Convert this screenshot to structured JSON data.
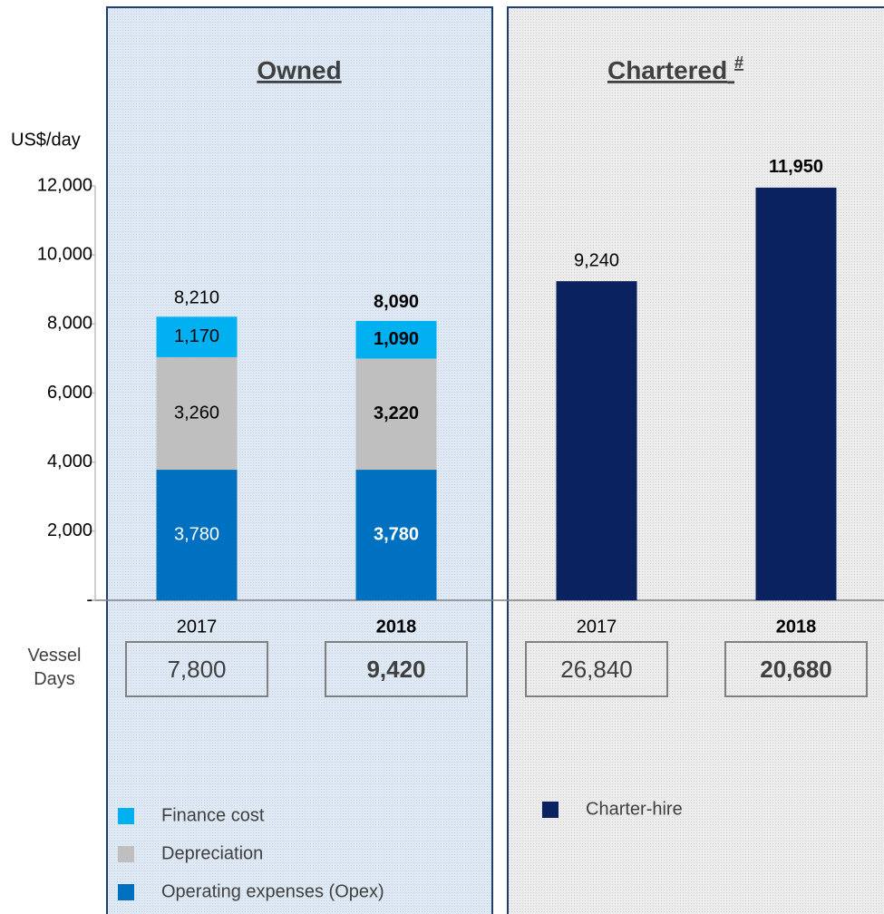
{
  "chart_data": [
    {
      "type": "stacked_bar",
      "title": "Owned",
      "y_label": "US$/day",
      "row_label": "Vessel Days",
      "categories": [
        "2017",
        "2018"
      ],
      "series": [
        {
          "name": "Operating expenses (Opex)",
          "color": "#0070c0",
          "values": [
            3780,
            3780
          ],
          "value_labels": [
            "3,780",
            "3,780"
          ]
        },
        {
          "name": "Depreciation",
          "color": "#bfbfbf",
          "values": [
            3260,
            3220
          ],
          "value_labels": [
            "3,260",
            "3,220"
          ]
        },
        {
          "name": "Finance cost",
          "color": "#00b0f0",
          "values": [
            1170,
            1090
          ],
          "value_labels": [
            "1,170",
            "1,090"
          ]
        }
      ],
      "totals": [
        8210,
        8090
      ],
      "total_labels": [
        "8,210",
        "8,090"
      ],
      "vessel_days": [
        7800,
        9420
      ],
      "vessel_days_labels": [
        "7,800",
        "9,420"
      ],
      "ylim": [
        0,
        12000
      ],
      "yticks": [
        {
          "value": 0,
          "label": "-"
        },
        {
          "value": 2000,
          "label": "2,000"
        },
        {
          "value": 4000,
          "label": "4,000"
        },
        {
          "value": 6000,
          "label": "6,000"
        },
        {
          "value": 8000,
          "label": "8,000"
        },
        {
          "value": 10000,
          "label": "10,000"
        },
        {
          "value": 12000,
          "label": "12,000"
        }
      ]
    },
    {
      "type": "bar",
      "title": "Chartered",
      "title_mark": "#",
      "categories": [
        "2017",
        "2018"
      ],
      "series": [
        {
          "name": "Charter-hire",
          "color": "#0b2261",
          "values": [
            9240,
            11950
          ],
          "value_labels": [
            "9,240",
            "11,950"
          ]
        }
      ],
      "vessel_days": [
        26840,
        20680
      ],
      "vessel_days_labels": [
        "26,840",
        "20,680"
      ],
      "ylim": [
        0,
        12000
      ]
    }
  ]
}
